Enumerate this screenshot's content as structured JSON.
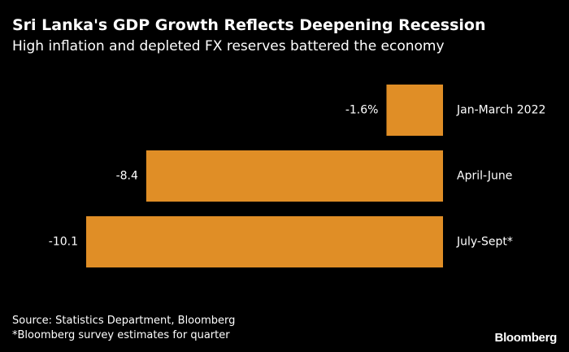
{
  "header": {
    "title": "Sri Lanka's GDP Growth Reflects Deepening Recession",
    "subtitle": "High inflation and depleted FX reserves battered the economy"
  },
  "footer": {
    "source": "Source: Statistics Department, Bloomberg",
    "footnote": "*Bloomberg survey estimates for quarter",
    "logo": "Bloomberg"
  },
  "chart_data": {
    "type": "bar",
    "orientation": "horizontal",
    "title": "Sri Lanka's GDP Growth Reflects Deepening Recession",
    "subtitle": "High inflation and depleted FX reserves battered the economy",
    "categories": [
      "Jan-March 2022",
      "April-June",
      "July-Sept*"
    ],
    "values": [
      -1.6,
      -8.4,
      -10.1
    ],
    "data_labels": [
      "-1.6%",
      "-8.4",
      "-10.1"
    ],
    "xlim": [
      -10.1,
      0
    ],
    "bar_color": "#E08E26",
    "background": "#000000",
    "grid": false,
    "legend": "none"
  }
}
